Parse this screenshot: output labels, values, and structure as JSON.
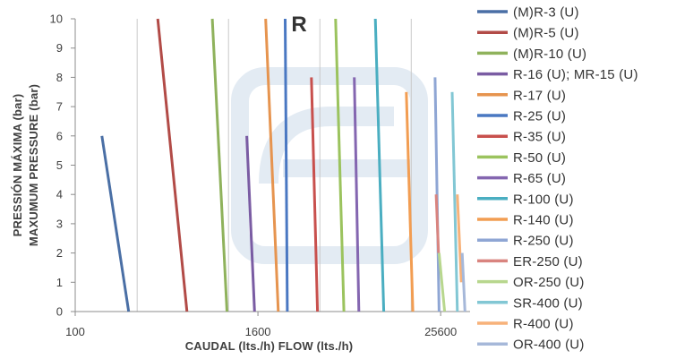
{
  "chart_data": {
    "type": "line",
    "title": "R",
    "xlabel": "CAUDAL (lts./h) FLOW (lts./h)",
    "ylabel": [
      "PRESSIÓN MÁXIMA (bar)",
      "MAXUMUM PRESSURE (bar)"
    ],
    "x_scale": "log4",
    "xlim": [
      100,
      40000
    ],
    "ylim": [
      0,
      10
    ],
    "x_ticks": [
      100,
      1600,
      25600
    ],
    "y_ticks": [
      0,
      1,
      2,
      3,
      4,
      5,
      6,
      7,
      8,
      9,
      10
    ],
    "grid": "vertical minor lines at powers of 4",
    "legend_position": "right",
    "series": [
      {
        "name": "(M)R-3 (U)",
        "color": "#4a6fa5",
        "x": [
          150,
          225
        ],
        "y": [
          6,
          0
        ]
      },
      {
        "name": "(M)R-5 (U)",
        "color": "#b24b47",
        "x": [
          350,
          545
        ],
        "y": [
          10,
          0
        ]
      },
      {
        "name": "(M)R-10 (U)",
        "color": "#8fb25c",
        "x": [
          800,
          1000
        ],
        "y": [
          10,
          0
        ]
      },
      {
        "name": "R-16 (U); MR-15 (U)",
        "color": "#7a5ca3",
        "x": [
          1350,
          1520
        ],
        "y": [
          6,
          0
        ]
      },
      {
        "name": "R-17 (U)",
        "color": "#e6944f",
        "x": [
          1800,
          2180
        ],
        "y": [
          10,
          0
        ]
      },
      {
        "name": "R-25 (U)",
        "color": "#4a78c2",
        "x": [
          2420,
          2500
        ],
        "y": [
          10,
          0
        ]
      },
      {
        "name": "R-35 (U)",
        "color": "#c8504d",
        "x": [
          3600,
          3950
        ],
        "y": [
          8,
          0
        ]
      },
      {
        "name": "R-50 (U)",
        "color": "#9bc35e",
        "x": [
          5200,
          5900
        ],
        "y": [
          10,
          0
        ]
      },
      {
        "name": "R-65 (U)",
        "color": "#8466b0",
        "x": [
          6900,
          7400
        ],
        "y": [
          8,
          0
        ]
      },
      {
        "name": "R-100 (U)",
        "color": "#4aaec1",
        "x": [
          9500,
          10800
        ],
        "y": [
          10,
          0
        ]
      },
      {
        "name": "R-140 (U)",
        "color": "#f29d52",
        "x": [
          15200,
          16800
        ],
        "y": [
          7.5,
          0
        ]
      },
      {
        "name": "R-250 (U)",
        "color": "#8fa6d4",
        "x": [
          23500,
          25000
        ],
        "y": [
          8,
          0
        ]
      },
      {
        "name": "ER-250 (U)",
        "color": "#d9847f",
        "x": [
          23900,
          24800
        ],
        "y": [
          4,
          2
        ]
      },
      {
        "name": "OR-250 (U)",
        "color": "#b8d78e",
        "x": [
          25000,
          27200
        ],
        "y": [
          2,
          0
        ]
      },
      {
        "name": "SR-400 (U)",
        "color": "#82c7d4",
        "x": [
          30500,
          33000
        ],
        "y": [
          7.5,
          0
        ]
      },
      {
        "name": "R-400 (U)",
        "color": "#f7b27a",
        "x": [
          33000,
          35000
        ],
        "y": [
          4,
          1
        ]
      },
      {
        "name": "OR-400 (U)",
        "color": "#a6b8d9",
        "x": [
          35500,
          37000
        ],
        "y": [
          2,
          0
        ]
      }
    ]
  }
}
